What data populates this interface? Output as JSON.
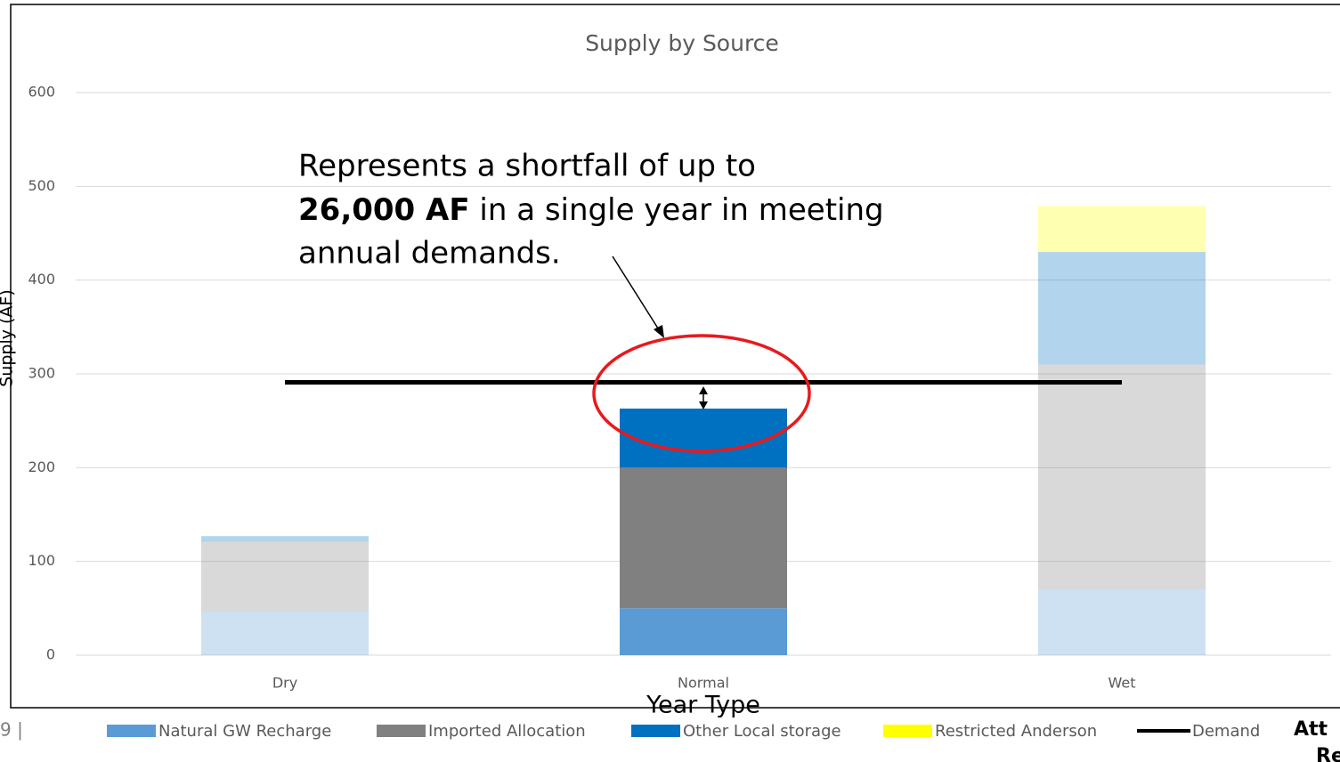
{
  "chart_data": {
    "type": "bar",
    "stacked": true,
    "title": "Supply by Source",
    "y_label": "Supply (AF)",
    "x_label": "Year Type",
    "categories": [
      "Dry",
      "Normal",
      "Wet"
    ],
    "highlight_index": 1,
    "series": [
      {
        "name": "Natural GW Recharge",
        "color": "#5b9bd5",
        "values": [
          47,
          50,
          70
        ]
      },
      {
        "name": "Imported Allocation",
        "color": "#808080",
        "values": [
          74,
          150,
          240
        ]
      },
      {
        "name": "Other Local storage",
        "color": "#0070c0",
        "values": [
          6,
          63,
          120
        ]
      },
      {
        "name": "Restricted Anderson",
        "color": "#ffff00",
        "values": [
          0,
          0,
          49
        ]
      },
      {
        "name": "Demand",
        "color": "#000000",
        "type": "line",
        "values": [
          291,
          291,
          291
        ]
      }
    ],
    "ylim": [
      0,
      600
    ],
    "yticks": [
      0,
      100,
      200,
      300,
      400,
      500,
      600
    ],
    "grid": true,
    "legend": "bottom",
    "annotation": {
      "line1": "Represents a shortfall of up to",
      "bold": "26,000 AF",
      "line2_rest": " in a single year in meeting",
      "line3": "annual demands."
    },
    "page_number": "9 |",
    "footer_lines": [
      "Att",
      "Re"
    ]
  }
}
